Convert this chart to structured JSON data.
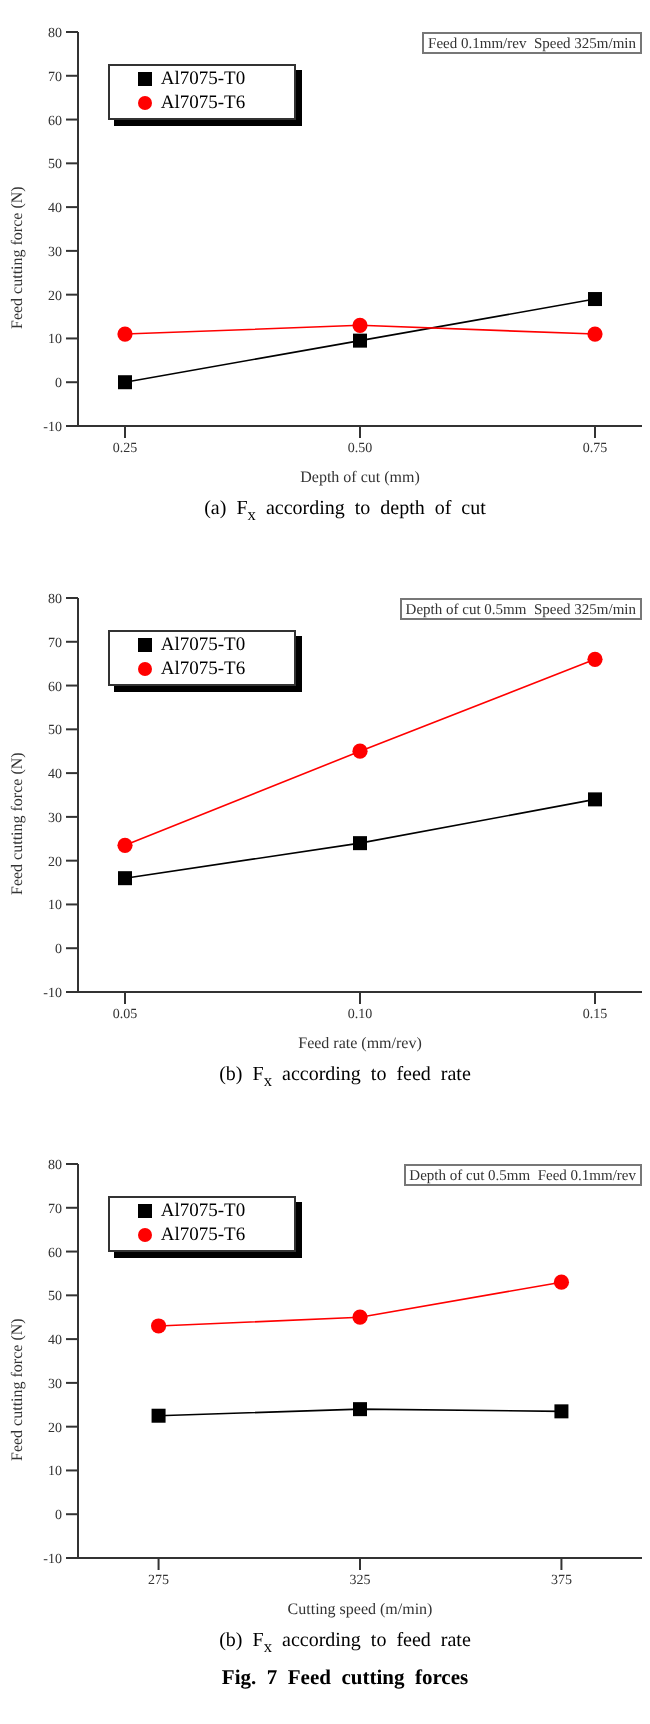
{
  "chart_data": [
    {
      "type": "line",
      "xlabel": "Depth of cut (mm)",
      "ylabel": "Feed cutting force (N)",
      "x": [
        0.25,
        0.5,
        0.75
      ],
      "xlim": [
        0.2,
        0.8
      ],
      "xticks": [
        {
          "value": 0.25,
          "label": "0.25"
        },
        {
          "value": 0.5,
          "label": "0.50"
        },
        {
          "value": 0.75,
          "label": "0.75"
        }
      ],
      "ylim": [
        -10,
        80
      ],
      "yticks": [
        -10,
        0,
        10,
        20,
        30,
        40,
        50,
        60,
        70,
        80
      ],
      "grid": false,
      "legend": "top left",
      "line_style": "solid",
      "annotations": [
        "Feed 0.1mm/rev  Speed 325m/min",
        "(a)  F$_{x}$  according  to  depth  of  cut"
      ],
      "series": [
        {
          "name": "Al7075-T0",
          "color": "#000000",
          "marker": "square",
          "values": [
            0,
            9.5,
            19
          ]
        },
        {
          "name": "Al7075-T6",
          "color": "#ff0000",
          "marker": "circle",
          "values": [
            11,
            13,
            11
          ]
        }
      ]
    },
    {
      "type": "line",
      "xlabel": "Feed rate (mm/rev)",
      "ylabel": "Feed cutting force (N)",
      "x": [
        0.05,
        0.1,
        0.15
      ],
      "xlim": [
        0.04,
        0.16
      ],
      "xticks": [
        {
          "value": 0.05,
          "label": "0.05"
        },
        {
          "value": 0.1,
          "label": "0.10"
        },
        {
          "value": 0.15,
          "label": "0.15"
        }
      ],
      "ylim": [
        -10,
        80
      ],
      "yticks": [
        -10,
        0,
        10,
        20,
        30,
        40,
        50,
        60,
        70,
        80
      ],
      "grid": false,
      "legend": "top left",
      "line_style": "solid",
      "annotations": [
        "Depth of cut 0.5mm  Speed 325m/min",
        "(b)  F$_{x}$  according  to  feed  rate"
      ],
      "series": [
        {
          "name": "Al7075-T0",
          "color": "#000000",
          "marker": "square",
          "values": [
            16,
            24,
            34
          ]
        },
        {
          "name": "Al7075-T6",
          "color": "#ff0000",
          "marker": "circle",
          "values": [
            23.5,
            45,
            66
          ]
        }
      ]
    },
    {
      "type": "line",
      "xlabel": "Cutting speed (m/min)",
      "ylabel": "Feed cutting force (N)",
      "x": [
        275,
        325,
        375
      ],
      "xlim": [
        255,
        395
      ],
      "xticks": [
        275,
        325,
        375
      ],
      "ylim": [
        -10,
        80
      ],
      "yticks": [
        -10,
        0,
        10,
        20,
        30,
        40,
        50,
        60,
        70,
        80
      ],
      "grid": false,
      "legend": "top left",
      "line_style": "solid",
      "annotations": [
        "Depth of cut 0.5mm  Feed 0.1mm/rev",
        "(b)  F$_{x}$  according  to  feed  rate",
        "Fig.  7  Feed  cutting  forces"
      ],
      "series": [
        {
          "name": "Al7075-T0",
          "color": "#000000",
          "marker": "square",
          "values": [
            22.5,
            24,
            23.5
          ]
        },
        {
          "name": "Al7075-T6",
          "color": "#ff0000",
          "marker": "circle",
          "values": [
            43,
            45,
            53
          ]
        }
      ]
    }
  ]
}
